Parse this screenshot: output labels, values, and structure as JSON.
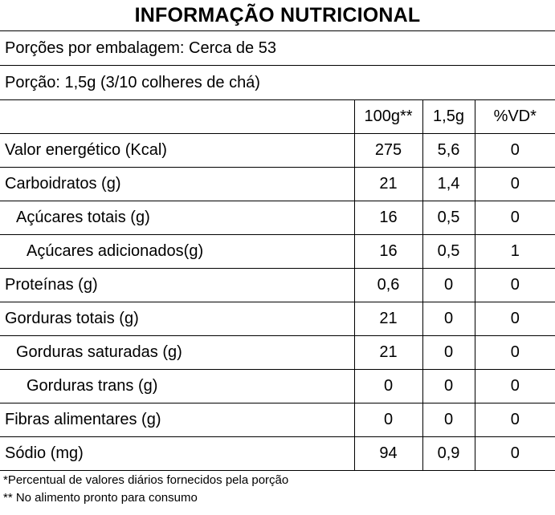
{
  "title": "INFORMAÇÃO NUTRICIONAL",
  "servings_per_package": "Porções por embalagem: Cerca de 53",
  "serving_size": "Porção: 1,5g (3/10 colheres de chá)",
  "columns": [
    "100g**",
    "1,5g",
    "%VD*"
  ],
  "rows": [
    {
      "label": "Valor energético (Kcal)",
      "per100g": "275",
      "perServing": "5,6",
      "dv": "0"
    },
    {
      "label": "Carboidratos (g)",
      "per100g": "21",
      "perServing": "1,4",
      "dv": "0"
    },
    {
      "label": "Açúcares totais (g)",
      "per100g": "16",
      "perServing": "0,5",
      "dv": "0"
    },
    {
      "label": "Açúcares adicionados(g)",
      "per100g": "16",
      "perServing": "0,5",
      "dv": "1"
    },
    {
      "label": "Proteínas (g)",
      "per100g": "0,6",
      "perServing": "0",
      "dv": "0"
    },
    {
      "label": "Gorduras totais (g)",
      "per100g": "21",
      "perServing": "0",
      "dv": "0"
    },
    {
      "label": "Gorduras saturadas (g)",
      "per100g": "21",
      "perServing": "0",
      "dv": "0"
    },
    {
      "label": "Gorduras trans (g)",
      "per100g": "0",
      "perServing": "0",
      "dv": "0"
    },
    {
      "label": "Fibras alimentares (g)",
      "per100g": "0",
      "perServing": "0",
      "dv": "0"
    },
    {
      "label": "Sódio (mg)",
      "per100g": "94",
      "perServing": "0,9",
      "dv": "0"
    }
  ],
  "footnotes": [
    "*Percentual de valores diários fornecidos pela porção",
    "** No alimento pronto para consumo"
  ]
}
